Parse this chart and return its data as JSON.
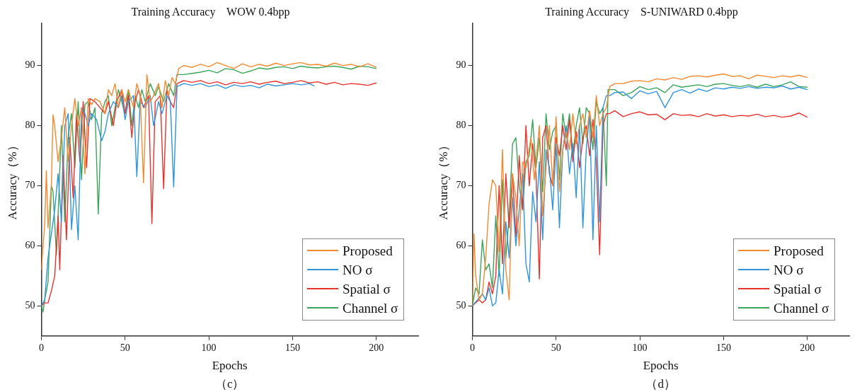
{
  "chart_data": [
    {
      "type": "line",
      "title": "Training Accuracy    WOW 0.4bpp",
      "xlabel": "Epochs",
      "ylabel": "Accuracy（%）",
      "annotations": [
        "（c）"
      ],
      "xlim": [
        0,
        225
      ],
      "xticks": [
        0,
        50,
        100,
        150,
        200
      ],
      "ylim": [
        45,
        97
      ],
      "yticks": [
        50,
        60,
        70,
        80,
        90
      ],
      "legend": "bottom right",
      "marker": "none",
      "series": [
        {
          "name": "Proposed",
          "color": "#f28a30",
          "x": [
            0,
            2,
            3,
            4,
            6,
            7,
            8,
            10,
            12,
            14,
            16,
            18,
            20,
            22,
            24,
            26,
            28,
            30,
            32,
            35,
            38,
            40,
            42,
            44,
            46,
            48,
            50,
            52,
            55,
            57,
            59,
            61,
            63,
            65,
            67,
            70,
            72,
            74,
            76,
            78,
            80,
            82,
            85,
            90,
            95,
            100,
            105,
            110,
            115,
            120,
            125,
            130,
            135,
            140,
            145,
            150,
            155,
            160,
            165,
            170,
            175,
            180,
            185,
            190,
            195,
            200
          ],
          "values": [
            56,
            63.5,
            72.5,
            63,
            70,
            81.8,
            80,
            74,
            78,
            83,
            74,
            80,
            84.5,
            80,
            83,
            72,
            84.5,
            83.5,
            84.5,
            84,
            82,
            86,
            85,
            87,
            83,
            86,
            84,
            86,
            83,
            87,
            85,
            70.5,
            88.5,
            84,
            85,
            87,
            83,
            87.5,
            85,
            88,
            87,
            89.5,
            90,
            89.7,
            90.2,
            89.8,
            90.5,
            90,
            89.5,
            90.3,
            89.8,
            90.2,
            89.9,
            90.4,
            90,
            90.3,
            90.5,
            90.1,
            90.2,
            89.9,
            90.4,
            90,
            90.2,
            89.8,
            90.3,
            89.7
          ]
        },
        {
          "name": "NO σ",
          "color": "#2f95d9",
          "x": [
            0,
            2,
            4,
            6,
            8,
            10,
            12,
            14,
            16,
            18,
            20,
            22,
            24,
            26,
            28,
            30,
            33,
            36,
            38,
            40,
            43,
            46,
            48,
            50,
            52,
            55,
            57,
            59,
            62,
            65,
            67,
            70,
            72,
            75,
            77,
            79,
            81,
            85,
            90,
            95,
            100,
            105,
            110,
            115,
            120,
            125,
            130,
            135,
            140,
            145,
            150,
            155,
            160,
            163
          ],
          "values": [
            50,
            51,
            58,
            62,
            66,
            72,
            64,
            80,
            82,
            62.7,
            70,
            61,
            83,
            82,
            80,
            82,
            81,
            77.5,
            79,
            82,
            84,
            83,
            85,
            81,
            84,
            85,
            71.5,
            84,
            83,
            85,
            80,
            84,
            82,
            85,
            84,
            69.8,
            86.5,
            87,
            86.7,
            87,
            86.5,
            86.8,
            86.2,
            86.8,
            86.5,
            86.7,
            86.3,
            86.9,
            86.6,
            86.8,
            87,
            86.8,
            87,
            86.6
          ]
        },
        {
          "name": "Spatial σ",
          "color": "#e8322e",
          "x": [
            0,
            2,
            4,
            6,
            8,
            10,
            11,
            13,
            15,
            17,
            19,
            21,
            23,
            25,
            27,
            29,
            32,
            35,
            38,
            40,
            43,
            45,
            48,
            50,
            52,
            54,
            56,
            58,
            61,
            64,
            66,
            68,
            71,
            73,
            75,
            77,
            79,
            81,
            85,
            90,
            95,
            100,
            105,
            110,
            115,
            120,
            125,
            130,
            135,
            140,
            145,
            150,
            155,
            160,
            165,
            170,
            175,
            180,
            185,
            190,
            195,
            200
          ],
          "values": [
            50,
            50.5,
            50.5,
            52.5,
            55,
            65,
            56,
            75,
            61,
            78,
            68,
            82,
            74,
            84,
            73,
            84.5,
            84,
            83,
            82,
            84,
            80,
            84,
            86,
            82,
            85,
            78,
            84,
            86,
            83,
            85,
            63.7,
            84,
            85,
            69.5,
            86,
            84,
            83,
            87,
            87.5,
            87.2,
            87.5,
            87,
            87.3,
            86.8,
            87.2,
            87,
            87.3,
            86.9,
            87.2,
            87.4,
            87,
            87.2,
            87.5,
            87.1,
            87.3,
            86.9,
            87.2,
            86.8,
            87,
            86.9,
            86.7,
            87.1
          ]
        },
        {
          "name": "Channel σ",
          "color": "#3aa55a",
          "x": [
            0,
            1,
            2,
            4,
            6,
            7,
            9,
            10,
            12,
            14,
            16,
            18,
            20,
            22,
            24,
            26,
            28,
            30,
            32,
            34,
            36,
            38,
            40,
            42,
            44,
            46,
            48,
            50,
            52,
            54,
            56,
            58,
            60,
            62,
            65,
            68,
            70,
            73,
            76,
            79,
            81,
            85,
            90,
            95,
            100,
            105,
            110,
            115,
            120,
            125,
            130,
            135,
            140,
            145,
            150,
            155,
            160,
            165,
            170,
            175,
            180,
            185,
            190,
            195,
            200
          ],
          "values": [
            50,
            49,
            51,
            54,
            70,
            69,
            58.5,
            65,
            80,
            64,
            78,
            82,
            73,
            84,
            71,
            83.5,
            84,
            81,
            83,
            65.3,
            82,
            84,
            85,
            80,
            83,
            86,
            84,
            82,
            86,
            80,
            85,
            83,
            86,
            84,
            87,
            85,
            86.5,
            84,
            87,
            85,
            88.5,
            88.5,
            88.7,
            88.9,
            89.2,
            88.8,
            89.5,
            89.3,
            88.7,
            89.1,
            89.6,
            89.4,
            89.7,
            89.8,
            89.5,
            89.9,
            89.7,
            89.6,
            89.8,
            89.9,
            89.7,
            89.4,
            89.9,
            89.8,
            89.5
          ]
        }
      ]
    },
    {
      "type": "line",
      "title": "Training Accuracy    S-UNIWARD 0.4bpp",
      "xlabel": "Epochs",
      "ylabel": "Accuracy（%）",
      "annotations": [
        "（d）"
      ],
      "xlim": [
        0,
        225
      ],
      "xticks": [
        0,
        50,
        100,
        150,
        200
      ],
      "ylim": [
        45,
        97
      ],
      "yticks": [
        50,
        60,
        70,
        80,
        90
      ],
      "legend": "bottom right",
      "marker": "none",
      "series": [
        {
          "name": "Proposed",
          "color": "#f28a30",
          "x": [
            0,
            1,
            2,
            4,
            6,
            8,
            10,
            12,
            14,
            16,
            18,
            20,
            22,
            24,
            26,
            28,
            30,
            32,
            35,
            37,
            40,
            42,
            44,
            46,
            48,
            50,
            52,
            54,
            56,
            58,
            60,
            62,
            64,
            66,
            68,
            70,
            72,
            74,
            76,
            78,
            80,
            82,
            85,
            90,
            95,
            100,
            105,
            110,
            115,
            120,
            125,
            130,
            135,
            140,
            145,
            150,
            155,
            160,
            165,
            170,
            175,
            180,
            185,
            190,
            195,
            200
          ],
          "values": [
            50,
            62,
            55,
            51,
            52,
            58,
            67,
            71,
            70,
            59,
            76,
            56,
            51,
            72,
            68,
            60,
            74,
            73,
            78,
            71,
            80,
            65,
            73,
            80,
            70,
            81.5,
            69,
            76,
            79,
            76,
            82,
            77,
            80,
            82,
            78,
            82.5,
            78,
            85,
            80,
            82,
            83,
            86.5,
            87,
            87,
            87.4,
            87.5,
            87.3,
            87.8,
            87.6,
            88,
            87.7,
            88.2,
            88.3,
            88.1,
            88.4,
            88.6,
            88.2,
            88.3,
            87.8,
            88.4,
            88.2,
            88,
            88.3,
            88.1,
            88.4,
            88
          ]
        },
        {
          "name": "NO σ",
          "color": "#2f95d9",
          "x": [
            0,
            3,
            6,
            8,
            10,
            12,
            14,
            16,
            18,
            20,
            22,
            24,
            26,
            28,
            30,
            32,
            34,
            36,
            38,
            40,
            42,
            44,
            46,
            48,
            50,
            52,
            54,
            56,
            58,
            60,
            62,
            64,
            66,
            68,
            70,
            72,
            74,
            76,
            78,
            80,
            82,
            85,
            90,
            95,
            100,
            105,
            110,
            115,
            120,
            125,
            130,
            135,
            140,
            145,
            150,
            155,
            160,
            165,
            170,
            175,
            180,
            185,
            190,
            195,
            200
          ],
          "values": [
            50,
            51,
            52,
            51,
            53,
            50,
            50.5,
            56,
            52,
            64,
            58,
            68,
            60,
            66,
            72,
            57,
            54,
            69,
            64,
            74,
            61,
            76,
            73,
            66,
            77,
            63,
            76,
            80,
            72,
            77,
            68,
            80,
            63,
            76,
            82,
            61,
            80,
            64,
            83,
            85,
            85,
            85.5,
            85.6,
            84.5,
            85.8,
            85.3,
            85.7,
            83,
            85.5,
            86,
            85.4,
            86.1,
            85.7,
            86.3,
            86.1,
            86.4,
            86.2,
            86.5,
            86.2,
            86.4,
            86.3,
            86.6,
            86.1,
            86.4,
            86
          ]
        },
        {
          "name": "Spatial σ",
          "color": "#e8322e",
          "x": [
            0,
            2,
            4,
            6,
            8,
            10,
            12,
            14,
            16,
            18,
            20,
            22,
            24,
            26,
            28,
            30,
            32,
            34,
            36,
            38,
            40,
            42,
            44,
            46,
            48,
            50,
            52,
            54,
            56,
            58,
            60,
            62,
            64,
            66,
            68,
            70,
            72,
            74,
            76,
            78,
            80,
            82,
            85,
            90,
            95,
            100,
            105,
            110,
            115,
            120,
            125,
            130,
            135,
            140,
            145,
            150,
            155,
            160,
            165,
            170,
            175,
            180,
            185,
            190,
            195,
            200
          ],
          "values": [
            50,
            50.5,
            51,
            50.5,
            51,
            54,
            52,
            55,
            70,
            57,
            72,
            63,
            72,
            61.5,
            75,
            66,
            80,
            70,
            77,
            72,
            54.5,
            78,
            80,
            72,
            70,
            78,
            75,
            80,
            76,
            81,
            74,
            79,
            73,
            78,
            80,
            75,
            81,
            74,
            58.5,
            80,
            82,
            82,
            82.5,
            81.5,
            82,
            82.3,
            81.8,
            81.9,
            81,
            82,
            81.7,
            81.8,
            81.5,
            82,
            81.6,
            81.8,
            81.5,
            81.7,
            81.6,
            81.9,
            81.5,
            81.7,
            81.4,
            81.6,
            82.1,
            81.4
          ]
        },
        {
          "name": "Channel σ",
          "color": "#3aa55a",
          "x": [
            0,
            2,
            4,
            6,
            8,
            10,
            12,
            14,
            16,
            18,
            20,
            22,
            24,
            26,
            28,
            30,
            32,
            34,
            36,
            38,
            40,
            42,
            44,
            46,
            48,
            50,
            52,
            54,
            56,
            58,
            60,
            62,
            64,
            66,
            68,
            70,
            72,
            74,
            76,
            78,
            80,
            81,
            85,
            90,
            95,
            100,
            105,
            110,
            115,
            120,
            125,
            130,
            135,
            140,
            145,
            150,
            155,
            160,
            165,
            170,
            175,
            180,
            185,
            190,
            195,
            200
          ],
          "values": [
            50,
            53,
            52,
            61,
            56,
            57,
            53,
            65,
            55,
            71,
            58,
            65,
            77,
            78,
            70,
            66,
            74,
            75,
            81,
            73,
            78,
            69,
            82,
            76,
            79,
            80,
            71,
            82,
            78,
            82,
            75,
            80,
            83,
            77,
            83,
            82,
            76,
            84,
            82,
            83,
            70,
            86,
            86,
            85,
            85.5,
            86.5,
            86,
            86.3,
            85.5,
            86.8,
            86.4,
            86.6,
            86.8,
            86.5,
            86.9,
            87,
            86.7,
            86.5,
            86.8,
            86.4,
            86.9,
            86.5,
            86.8,
            87.3,
            86.5,
            86.4
          ]
        }
      ]
    }
  ]
}
